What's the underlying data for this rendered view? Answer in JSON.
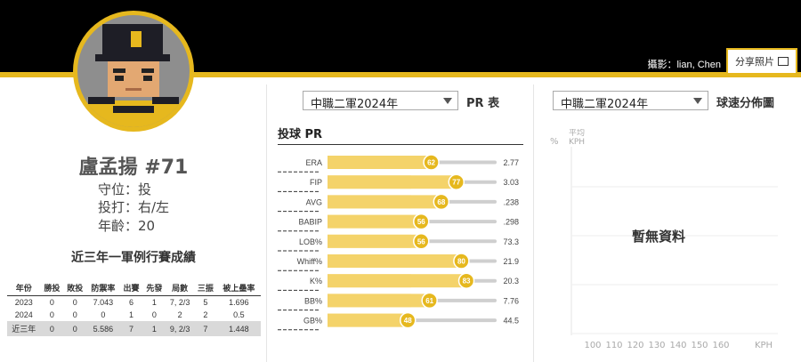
{
  "header": {
    "photo_credit": "攝影：lian, Chen",
    "share_label": "分享照片"
  },
  "player": {
    "name": "盧孟揚 #71",
    "position": "守位：投",
    "bats_throws": "投打：右/左",
    "age": "年齡：20"
  },
  "stats_section": {
    "title": "近三年一軍例行賽成績",
    "columns": [
      "年份",
      "勝投",
      "敗投",
      "防禦率",
      "出賽",
      "先發",
      "局數",
      "三振",
      "被上壘率"
    ],
    "rows": [
      [
        "2023",
        "0",
        "0",
        "7.043",
        "6",
        "1",
        "7, 2/3",
        "5",
        "1.696"
      ],
      [
        "2024",
        "0",
        "0",
        "0",
        "1",
        "0",
        "2",
        "2",
        "0.5"
      ]
    ],
    "total": [
      "近三年",
      "0",
      "0",
      "5.586",
      "7",
      "1",
      "9, 2/3",
      "7",
      "1.448"
    ]
  },
  "pr_panel": {
    "selector": "中職二軍2024年",
    "label": "PR 表",
    "title": "投球 PR"
  },
  "speed_panel": {
    "selector": "中職二軍2024年",
    "label": "球速分佈圖",
    "no_data": "暫無資料",
    "y_axis": {
      "unit": "%",
      "label_line1": "平均",
      "label_line2": "KPH"
    },
    "x_ticks": [
      "100",
      "110",
      "120",
      "130",
      "140",
      "150",
      "160"
    ],
    "x_unit": "KPH"
  },
  "chart_data": {
    "type": "bar",
    "categories": [
      "ERA",
      "FIP",
      "AVG",
      "BABIP",
      "LOB%",
      "Whiff%",
      "K%",
      "BB%",
      "GB%"
    ],
    "values": [
      62,
      77,
      68,
      56,
      56,
      80,
      83,
      61,
      48
    ],
    "values_display": [
      "2.77",
      "3.03",
      ".238",
      ".298",
      "73.3",
      "21.9",
      "20.3",
      "7.76",
      "44.5"
    ],
    "xlim": [
      0,
      100
    ]
  },
  "colors": {
    "gold": "#e6b81e",
    "bar": "#f4d36a",
    "bar_light": "#fbe9a8",
    "track": "#cfcfcf"
  }
}
